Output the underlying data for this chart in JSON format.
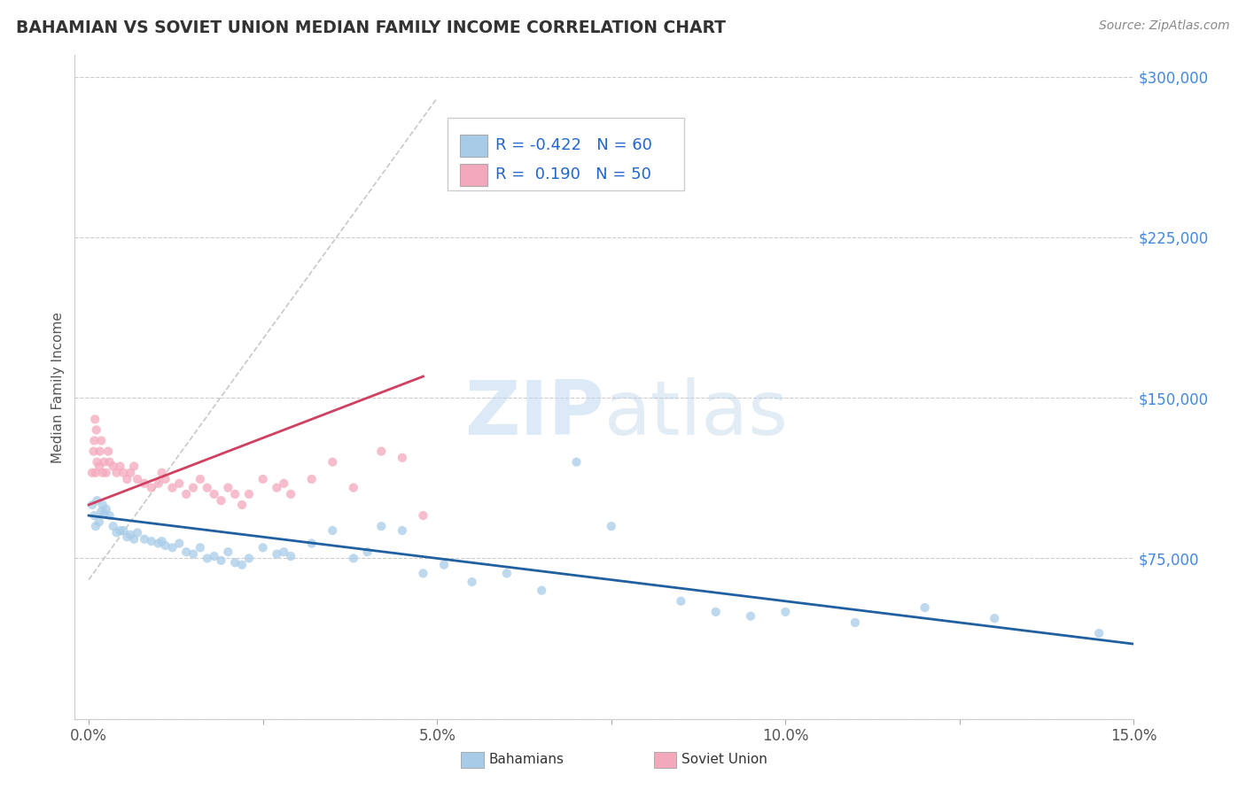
{
  "title": "BAHAMIAN VS SOVIET UNION MEDIAN FAMILY INCOME CORRELATION CHART",
  "source_text": "Source: ZipAtlas.com",
  "ylabel": "Median Family Income",
  "xlim": [
    -0.2,
    15.0
  ],
  "ylim": [
    0,
    310000
  ],
  "xticks": [
    0.0,
    2.5,
    5.0,
    7.5,
    10.0,
    12.5,
    15.0
  ],
  "xtick_labels": [
    "0.0%",
    "",
    "5.0%",
    "",
    "10.0%",
    "",
    "15.0%"
  ],
  "yticks": [
    0,
    75000,
    150000,
    225000,
    300000
  ],
  "bahamian_color": "#a8cce8",
  "soviet_color": "#f4a8bc",
  "bahamian_line_color": "#2060a0",
  "soviet_line_color": "#d04060",
  "R_bahamian": -0.422,
  "N_bahamian": 60,
  "R_soviet": 0.19,
  "N_soviet": 50,
  "legend_label_bahamian": "Bahamians",
  "legend_label_soviet": "Soviet Union",
  "watermark_zip": "ZIP",
  "watermark_atlas": "atlas",
  "background_color": "#ffffff",
  "scatter_alpha": 0.75,
  "scatter_size": 55,
  "bahamian_x": [
    0.05,
    0.08,
    0.1,
    0.12,
    0.15,
    0.18,
    0.2,
    0.22,
    0.25,
    0.3,
    0.35,
    0.4,
    0.45,
    0.5,
    0.55,
    0.6,
    0.65,
    0.7,
    0.8,
    0.9,
    1.0,
    1.05,
    1.1,
    1.2,
    1.3,
    1.4,
    1.5,
    1.6,
    1.7,
    1.8,
    1.9,
    2.0,
    2.1,
    2.2,
    2.3,
    2.5,
    2.7,
    2.8,
    2.9,
    3.2,
    3.5,
    3.8,
    4.0,
    4.2,
    4.5,
    4.8,
    5.1,
    5.5,
    6.0,
    6.5,
    7.0,
    7.5,
    8.5,
    9.0,
    9.5,
    10.0,
    11.0,
    12.0,
    13.0,
    14.5
  ],
  "bahamian_y": [
    100000,
    95000,
    90000,
    102000,
    92000,
    97000,
    100000,
    96000,
    98000,
    95000,
    90000,
    87000,
    88000,
    88000,
    85000,
    86000,
    84000,
    87000,
    84000,
    83000,
    82000,
    83000,
    81000,
    80000,
    82000,
    78000,
    77000,
    80000,
    75000,
    76000,
    74000,
    78000,
    73000,
    72000,
    75000,
    80000,
    77000,
    78000,
    76000,
    82000,
    88000,
    75000,
    78000,
    90000,
    88000,
    68000,
    72000,
    64000,
    68000,
    60000,
    120000,
    90000,
    55000,
    50000,
    48000,
    50000,
    45000,
    52000,
    47000,
    40000
  ],
  "soviet_x": [
    0.05,
    0.07,
    0.08,
    0.09,
    0.1,
    0.11,
    0.12,
    0.15,
    0.16,
    0.18,
    0.2,
    0.22,
    0.25,
    0.28,
    0.3,
    0.35,
    0.4,
    0.45,
    0.5,
    0.55,
    0.6,
    0.65,
    0.7,
    0.8,
    0.9,
    1.0,
    1.05,
    1.1,
    1.2,
    1.3,
    1.4,
    1.5,
    1.6,
    1.7,
    1.8,
    1.9,
    2.0,
    2.1,
    2.2,
    2.3,
    2.5,
    2.7,
    2.8,
    2.9,
    3.2,
    3.5,
    3.8,
    4.2,
    4.5,
    4.8
  ],
  "soviet_y": [
    115000,
    125000,
    130000,
    140000,
    115000,
    135000,
    120000,
    118000,
    125000,
    130000,
    115000,
    120000,
    115000,
    125000,
    120000,
    118000,
    115000,
    118000,
    115000,
    112000,
    115000,
    118000,
    112000,
    110000,
    108000,
    110000,
    115000,
    112000,
    108000,
    110000,
    105000,
    108000,
    112000,
    108000,
    105000,
    102000,
    108000,
    105000,
    100000,
    105000,
    112000,
    108000,
    110000,
    105000,
    112000,
    120000,
    108000,
    125000,
    122000,
    95000
  ],
  "diag_x0": 0.0,
  "diag_y0": 65000,
  "diag_x1": 5.0,
  "diag_y1": 290000
}
